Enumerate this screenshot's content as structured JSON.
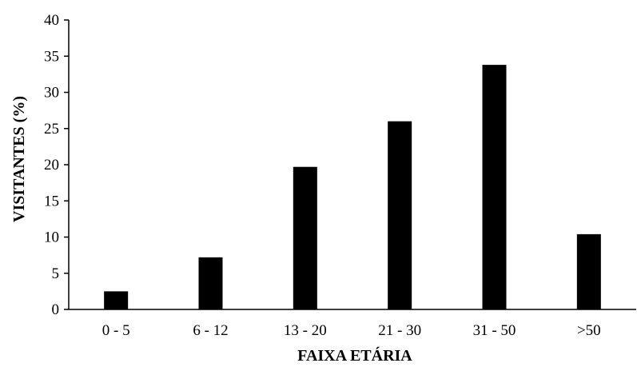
{
  "chart_data": {
    "type": "bar",
    "categories": [
      "0 - 5",
      "6 - 12",
      "13 - 20",
      "21 - 30",
      "31 - 50",
      ">50"
    ],
    "values": [
      2.5,
      7.2,
      19.7,
      26.0,
      33.8,
      10.4
    ],
    "xlabel": "FAIXA ETÁRIA",
    "ylabel": "VISITANTES (%)",
    "ylim": [
      0,
      40
    ],
    "yticks": [
      0,
      5,
      10,
      15,
      20,
      25,
      30,
      35,
      40
    ],
    "ytick_labels": [
      "0",
      "5",
      "10",
      "15",
      "20",
      "25",
      "30",
      "35",
      "40"
    ],
    "grid": false,
    "legend": "none",
    "bar_color": "#000000"
  }
}
